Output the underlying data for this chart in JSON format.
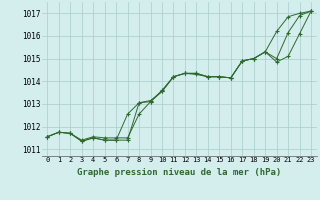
{
  "xlabel": "Graphe pression niveau de la mer (hPa)",
  "ylim": [
    1010.7,
    1017.5
  ],
  "xlim": [
    -0.5,
    23.5
  ],
  "yticks": [
    1011,
    1012,
    1013,
    1014,
    1015,
    1016,
    1017
  ],
  "xticks": [
    0,
    1,
    2,
    3,
    4,
    5,
    6,
    7,
    8,
    9,
    10,
    11,
    12,
    13,
    14,
    15,
    16,
    17,
    18,
    19,
    20,
    21,
    22,
    23
  ],
  "background_color": "#d4eeee",
  "grid_color": "#aacccc",
  "line_color": "#2d6a2d",
  "series": [
    [
      1011.55,
      1011.75,
      1011.7,
      1011.4,
      1011.55,
      1011.5,
      1011.5,
      1011.5,
      1012.55,
      1013.1,
      1013.6,
      1014.2,
      1014.35,
      1014.3,
      1014.2,
      1014.2,
      1014.15,
      1014.9,
      1015.0,
      1015.3,
      1016.2,
      1016.85,
      1017.0,
      1017.1
    ],
    [
      1011.55,
      1011.75,
      1011.7,
      1011.35,
      1011.5,
      1011.4,
      1011.4,
      1011.4,
      1013.05,
      1013.1,
      1013.55,
      1014.2,
      1014.35,
      1014.35,
      1014.2,
      1014.2,
      1014.15,
      1014.9,
      1015.0,
      1015.3,
      1015.0,
      1016.15,
      1016.9,
      1017.1
    ],
    [
      1011.55,
      1011.75,
      1011.7,
      1011.35,
      1011.5,
      1011.4,
      1011.4,
      1012.55,
      1013.05,
      1013.15,
      1013.55,
      1014.2,
      1014.35,
      1014.35,
      1014.2,
      1014.2,
      1014.15,
      1014.9,
      1015.0,
      1015.3,
      1014.85,
      1015.1,
      1016.1,
      1017.1
    ]
  ]
}
